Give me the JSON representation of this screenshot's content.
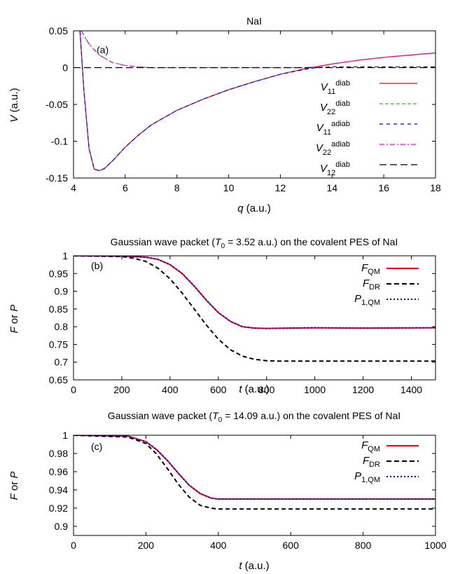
{
  "chart_data": [
    {
      "panel": "(a)",
      "type": "line",
      "title": "NaI",
      "xlabel": "q (a.u.)",
      "ylabel": "V (a.u.)",
      "xlim": [
        4,
        18
      ],
      "ylim": [
        -0.15,
        0.05
      ],
      "xticks": [
        "4",
        "6",
        "8",
        "10",
        "12",
        "14",
        "16",
        "18"
      ],
      "yticks": [
        "-0.15",
        "-0.1",
        "-0.05",
        "0",
        "0.05"
      ],
      "legend_position": "right",
      "series": [
        {
          "name": "V11 diab",
          "color": "#ff0000",
          "dash": "solid",
          "x": [
            4.25,
            4.4,
            4.6,
            4.8,
            5.0,
            5.2,
            5.5,
            6.0,
            6.5,
            7.0,
            8.0,
            9.0,
            10.0,
            11.0,
            12.0,
            13.0,
            14.0,
            15.0,
            16.0,
            17.0,
            18.0
          ],
          "y": [
            0.05,
            -0.03,
            -0.11,
            -0.138,
            -0.14,
            -0.137,
            -0.127,
            -0.108,
            -0.092,
            -0.078,
            -0.058,
            -0.043,
            -0.03,
            -0.019,
            -0.009,
            -0.001,
            0.005,
            0.01,
            0.014,
            0.017,
            0.02
          ]
        },
        {
          "name": "V22 diab",
          "color": "#22cc22",
          "dash": "dashed",
          "x": [
            4.3,
            4.6,
            5.0,
            5.5,
            6.0,
            6.5,
            7.0,
            8.0,
            10.0,
            12.0,
            13.0,
            14.0,
            15.0,
            16.0,
            18.0
          ],
          "y": [
            0.05,
            0.032,
            0.017,
            0.007,
            0.003,
            0.001,
            0.0,
            0.0,
            0.0,
            0.0,
            0.0,
            0.001,
            0.001,
            0.001,
            0.001
          ]
        },
        {
          "name": "V11 adiab",
          "color": "#0000ff",
          "dash": "dashed",
          "x": [
            4.25,
            4.4,
            4.6,
            4.8,
            5.0,
            5.2,
            5.5,
            6.0,
            6.5,
            7.0,
            8.0,
            9.0,
            10.0,
            11.0,
            12.0,
            13.0,
            13.4,
            14.0,
            15.0,
            16.0,
            18.0
          ],
          "y": [
            0.05,
            -0.03,
            -0.11,
            -0.138,
            -0.14,
            -0.137,
            -0.127,
            -0.108,
            -0.092,
            -0.078,
            -0.058,
            -0.043,
            -0.03,
            -0.019,
            -0.009,
            -0.002,
            0.0,
            0.001,
            0.001,
            0.001,
            0.001
          ]
        },
        {
          "name": "V22 adiab",
          "color": "#ee00ee",
          "dash": "dashdot",
          "x": [
            4.3,
            4.6,
            5.0,
            5.5,
            6.0,
            6.5,
            7.0,
            8.0,
            10.0,
            12.0,
            13.0,
            13.4,
            14.0,
            15.0,
            16.0,
            17.0,
            18.0
          ],
          "y": [
            0.05,
            0.032,
            0.017,
            0.007,
            0.003,
            0.001,
            0.0,
            0.0,
            0.0,
            0.0,
            0.0,
            0.001,
            0.005,
            0.01,
            0.014,
            0.017,
            0.02
          ]
        },
        {
          "name": "V12 diab",
          "color": "#000000",
          "dash": "longdash",
          "x": [
            4,
            18
          ],
          "y": [
            0,
            0
          ]
        }
      ]
    },
    {
      "panel": "(b)",
      "type": "line",
      "title": "Gaussian wave packet (T0 = 3.52 a.u.) on the covalent PES of NaI",
      "xlabel": "t (a.u.)",
      "ylabel": "F or P",
      "xlim": [
        0,
        1500
      ],
      "ylim": [
        0.65,
        1
      ],
      "xticks": [
        "0",
        "200",
        "400",
        "600",
        "800",
        "1000",
        "1200",
        "1400"
      ],
      "yticks": [
        "0.65",
        "0.7",
        "0.75",
        "0.8",
        "0.85",
        "0.9",
        "0.95",
        "1"
      ],
      "legend_position": "top-right",
      "series": [
        {
          "name": "F QM",
          "color": "#ff0000",
          "dash": "solid",
          "x": [
            0,
            200,
            300,
            350,
            400,
            450,
            500,
            550,
            600,
            650,
            700,
            750,
            800,
            900,
            1000,
            1200,
            1500
          ],
          "y": [
            1.0,
            0.999,
            0.996,
            0.99,
            0.975,
            0.95,
            0.915,
            0.875,
            0.84,
            0.815,
            0.8,
            0.796,
            0.795,
            0.796,
            0.797,
            0.796,
            0.797
          ]
        },
        {
          "name": "F DR",
          "color": "#000000",
          "dash": "dashed",
          "x": [
            0,
            200,
            250,
            300,
            350,
            400,
            450,
            500,
            550,
            600,
            650,
            700,
            750,
            800,
            850,
            900,
            1000,
            1200,
            1500
          ],
          "y": [
            1.0,
            0.998,
            0.993,
            0.984,
            0.965,
            0.935,
            0.895,
            0.85,
            0.805,
            0.765,
            0.735,
            0.717,
            0.708,
            0.704,
            0.703,
            0.703,
            0.703,
            0.703,
            0.703
          ]
        },
        {
          "name": "P 1,QM",
          "color": "#0000ff",
          "dash": "dotted",
          "x": [
            0,
            200,
            300,
            350,
            400,
            450,
            500,
            550,
            600,
            650,
            700,
            750,
            800,
            900,
            1000,
            1200,
            1500
          ],
          "y": [
            1.0,
            0.999,
            0.996,
            0.99,
            0.975,
            0.95,
            0.915,
            0.875,
            0.84,
            0.815,
            0.8,
            0.796,
            0.795,
            0.796,
            0.797,
            0.796,
            0.797
          ]
        }
      ]
    },
    {
      "panel": "(c)",
      "type": "line",
      "title": "Gaussian wave packet (T0 = 14.09 a.u.) on the covalent PES of NaI",
      "xlabel": "t (a.u.)",
      "ylabel": "F or P",
      "xlim": [
        0,
        1000
      ],
      "ylim": [
        0.89,
        1
      ],
      "xticks": [
        "0",
        "200",
        "400",
        "600",
        "800",
        "1000"
      ],
      "yticks": [
        "0.9",
        "0.92",
        "0.94",
        "0.96",
        "0.98",
        "1"
      ],
      "legend_position": "top-right",
      "series": [
        {
          "name": "F QM",
          "color": "#ff0000",
          "dash": "solid",
          "x": [
            0,
            150,
            200,
            230,
            260,
            290,
            320,
            350,
            380,
            400,
            450,
            500,
            700,
            1000
          ],
          "y": [
            1.0,
            0.999,
            0.993,
            0.984,
            0.972,
            0.958,
            0.945,
            0.936,
            0.931,
            0.93,
            0.93,
            0.93,
            0.93,
            0.93
          ]
        },
        {
          "name": "F DR",
          "color": "#000000",
          "dash": "dashed",
          "x": [
            0,
            150,
            200,
            230,
            260,
            290,
            320,
            350,
            380,
            400,
            450,
            500,
            700,
            1000
          ],
          "y": [
            1.0,
            0.998,
            0.991,
            0.979,
            0.963,
            0.946,
            0.932,
            0.923,
            0.92,
            0.919,
            0.919,
            0.919,
            0.919,
            0.919
          ]
        },
        {
          "name": "P 1,QM",
          "color": "#0000ff",
          "dash": "dotted",
          "x": [
            0,
            150,
            200,
            230,
            260,
            290,
            320,
            350,
            380,
            400,
            450,
            500,
            700,
            1000
          ],
          "y": [
            1.0,
            0.999,
            0.993,
            0.984,
            0.972,
            0.958,
            0.945,
            0.936,
            0.931,
            0.93,
            0.93,
            0.93,
            0.93,
            0.93
          ]
        }
      ]
    }
  ]
}
